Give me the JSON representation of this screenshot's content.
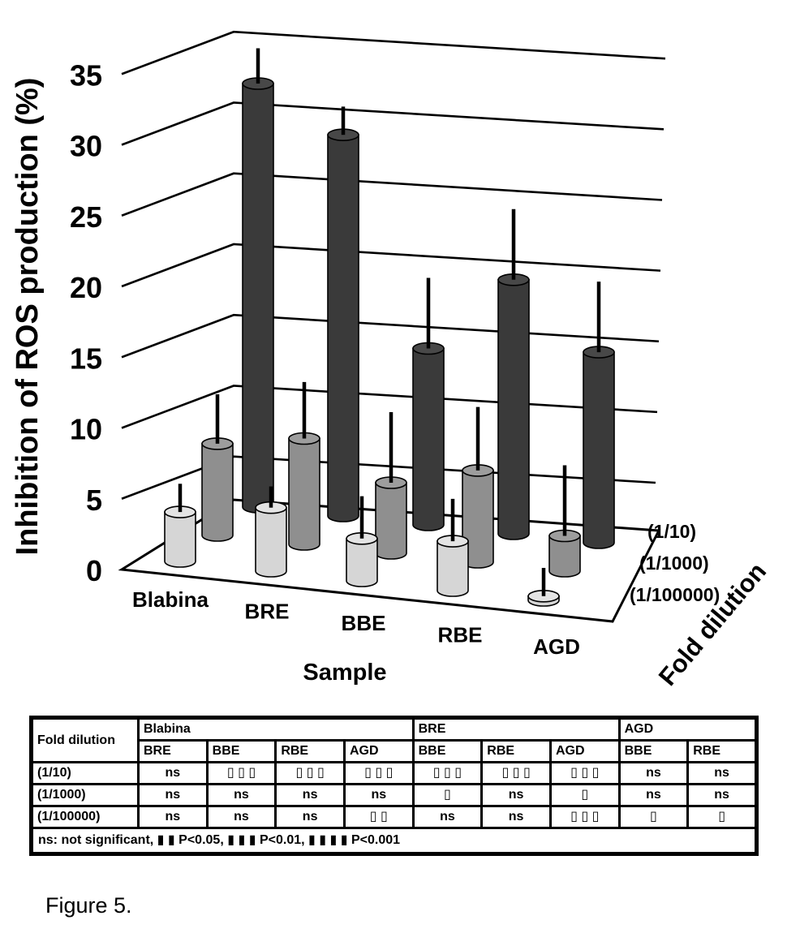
{
  "figure": {
    "caption": "Figure 5."
  },
  "chart": {
    "y_axis": {
      "title": "Inhibition of ROS production (%)",
      "ticks": [
        0,
        5,
        10,
        15,
        20,
        25,
        30,
        35
      ]
    },
    "x_axis": {
      "title": "Sample"
    },
    "z_axis": {
      "title": "Fold dilution",
      "labels": [
        "(1/10)",
        "(1/1000)",
        "(1/100000)"
      ]
    }
  },
  "chart_data": {
    "type": "bar",
    "style": "3d-cylinder",
    "title": "",
    "xlabel": "Sample",
    "ylabel": "Inhibition of ROS production (%)",
    "zlabel": "Fold dilution",
    "ylim": [
      0,
      35
    ],
    "grid": true,
    "units": "%",
    "categories": [
      "Blabina",
      "BRE",
      "BBE",
      "RBE",
      "AGD"
    ],
    "series": [
      {
        "name": "(1/10)",
        "depth": "back",
        "color": "#3a3a3a",
        "top_color": "#484848",
        "values": [
          30,
          27,
          12.5,
          18,
          13.5
        ],
        "errors_plus": [
          2.5,
          2,
          5,
          5,
          5
        ]
      },
      {
        "name": "(1/1000)",
        "depth": "middle",
        "color": "#8f8f8f",
        "top_color": "#9d9d9d",
        "values": [
          6.5,
          7.5,
          5,
          6.5,
          2.5
        ],
        "errors_plus": [
          3.5,
          4,
          5,
          4.5,
          5
        ]
      },
      {
        "name": "(1/100000)",
        "depth": "front",
        "color": "#d6d6d6",
        "top_color": "#e4e4e4",
        "values": [
          3.5,
          4.5,
          3,
          3.5,
          0.3
        ],
        "errors_plus": [
          2,
          1.5,
          3,
          3,
          2
        ]
      }
    ]
  },
  "table": {
    "corner_header": "Fold dilution",
    "groups": [
      {
        "label": "Blabina",
        "span": 4
      },
      {
        "label": "BRE",
        "span": 3
      },
      {
        "label": "AGD",
        "span": 2
      }
    ],
    "sub_headers": [
      "BRE",
      "BBE",
      "RBE",
      "AGD",
      "BBE",
      "RBE",
      "AGD",
      "BBE",
      "RBE"
    ],
    "rows": [
      {
        "label": "(1/10)",
        "cells": [
          "ns",
          "▯ ▯ ▯",
          "▯ ▯ ▯",
          "▯ ▯ ▯",
          "▯ ▯ ▯",
          "▯ ▯ ▯",
          "▯ ▯ ▯",
          "ns",
          "ns"
        ]
      },
      {
        "label": "(1/1000)",
        "cells": [
          "ns",
          "ns",
          "ns",
          "ns",
          "▯",
          "ns",
          "▯",
          "ns",
          "ns"
        ]
      },
      {
        "label": "(1/100000)",
        "cells": [
          "ns",
          "ns",
          "ns",
          "▯ ▯",
          "ns",
          "ns",
          "▯ ▯ ▯",
          "▯",
          "▯"
        ]
      }
    ],
    "footnote": "ns: not significant, ▮ ▮ P<0.05, ▮ ▮ ▮ P<0.01, ▮ ▮ ▮ ▮ P<0.001"
  }
}
